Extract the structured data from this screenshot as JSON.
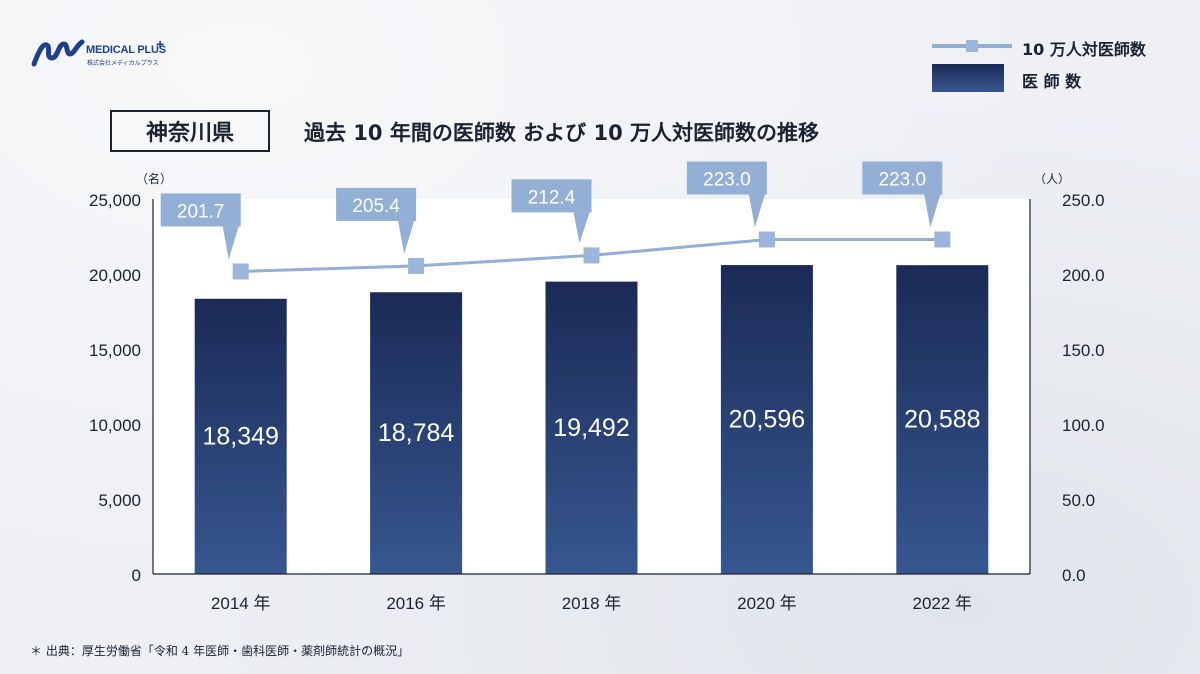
{
  "logo": {
    "name": "MEDICAL PLUS",
    "plus": "+",
    "subtitle": "株式会社メディカルプラス"
  },
  "region": "神奈川県",
  "title": "過去 10 年間の医師数 および 10 万人対医師数の推移",
  "legend": {
    "line_label": "10 万人対医師数",
    "bar_label": "医 師 数"
  },
  "units": {
    "left": "（名）",
    "right": "（人）"
  },
  "footnote": "＊ 出典：厚生労働省「令和 4 年医師・歯科医師・薬剤師統計の概況」",
  "colors": {
    "bar_top": "#1b2a57",
    "bar_bottom": "#37578f",
    "line": "#93afd6",
    "marker": "#9cb6db",
    "callout": "#93afd6",
    "plot_bg": "#ffffff"
  },
  "chart_data": {
    "type": "bar",
    "categories": [
      "2014 年",
      "2016 年",
      "2018 年",
      "2020 年",
      "2022 年"
    ],
    "series": [
      {
        "name": "医 師 数",
        "type": "bar",
        "axis": "left",
        "values": [
          18349,
          18784,
          19492,
          20596,
          20588
        ],
        "labels": [
          "18,349",
          "18,784",
          "19,492",
          "20,596",
          "20,588"
        ]
      },
      {
        "name": "10 万人対医師数",
        "type": "line",
        "axis": "right",
        "values": [
          201.7,
          205.4,
          212.4,
          223.0,
          223.0
        ],
        "labels": [
          "201.7",
          "205.4",
          "212.4",
          "223.0",
          "223.0"
        ]
      }
    ],
    "y_left": {
      "min": 0,
      "max": 25000,
      "ticks": [
        "0",
        "5,000",
        "10,000",
        "15,000",
        "20,000",
        "25,000"
      ]
    },
    "y_right": {
      "min": 0,
      "max": 250,
      "ticks": [
        "0.0",
        "50.0",
        "100.0",
        "150.0",
        "200.0",
        "250.0"
      ]
    },
    "grid": false,
    "legend_position": "top-right"
  }
}
